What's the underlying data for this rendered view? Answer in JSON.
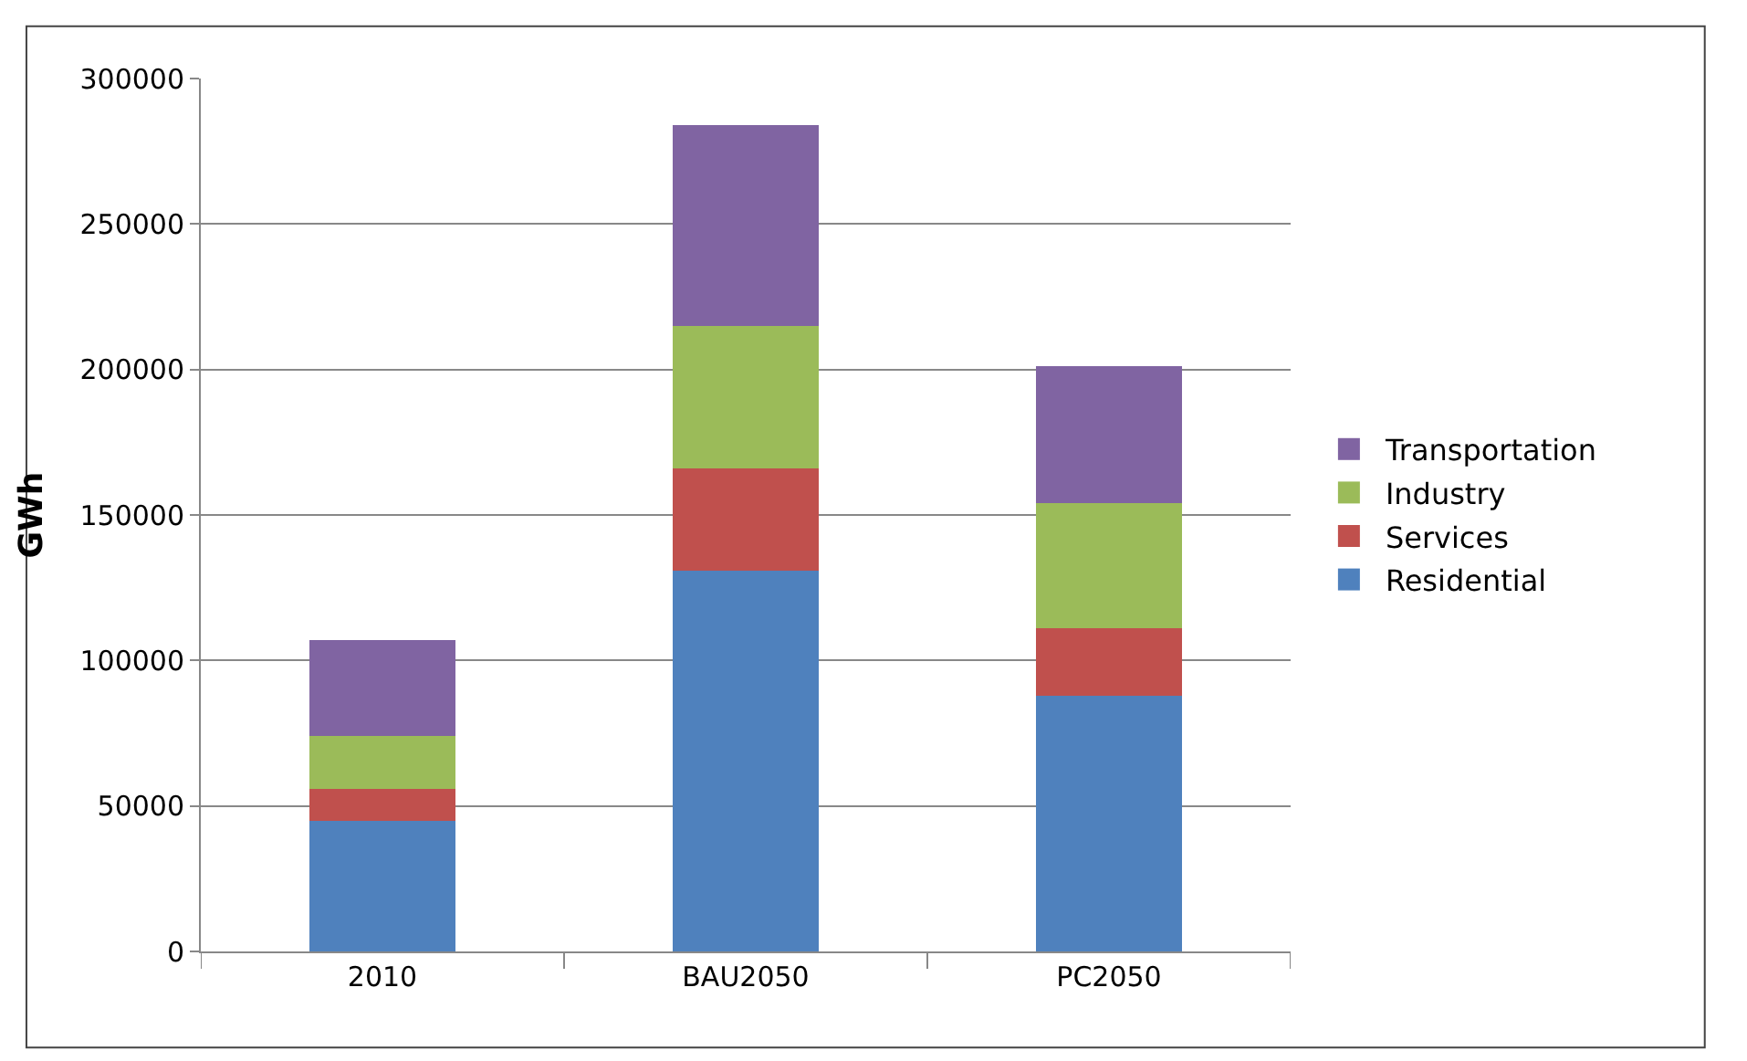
{
  "chart_data": {
    "type": "bar",
    "stacked": true,
    "ylabel": "GWh",
    "categories": [
      "2010",
      "BAU2050",
      "PC2050"
    ],
    "series": [
      {
        "name": "Residential",
        "color": "#4f81bd",
        "values": [
          45000,
          131000,
          88000
        ]
      },
      {
        "name": "Services",
        "color": "#c0504d",
        "values": [
          11000,
          35000,
          23000
        ]
      },
      {
        "name": "Industry",
        "color": "#9bbb59",
        "values": [
          18000,
          49000,
          43000
        ]
      },
      {
        "name": "Transportation",
        "color": "#8064a2",
        "values": [
          33000,
          69000,
          47000
        ]
      }
    ],
    "ylim": [
      0,
      300000
    ],
    "yticks": [
      0,
      50000,
      100000,
      150000,
      200000,
      250000,
      300000
    ],
    "grid": "y",
    "legend": "right"
  }
}
